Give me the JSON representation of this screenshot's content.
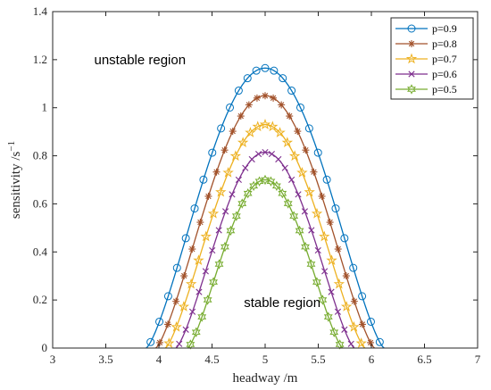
{
  "chart_data": {
    "type": "line",
    "xlabel": "headway /m",
    "ylabel": "sensitivity /s",
    "ylabel_sup": "−1",
    "xlim": [
      3,
      7
    ],
    "ylim": [
      0,
      1.4
    ],
    "xticks": [
      "3",
      "3.5",
      "4",
      "4.5",
      "5",
      "5.5",
      "6",
      "6.5",
      "7"
    ],
    "yticks": [
      "0",
      "0.2",
      "0.4",
      "0.6",
      "0.8",
      "1",
      "1.2",
      "1.4"
    ],
    "grid": false,
    "legend_position": "top-right",
    "annotations": [
      {
        "text": "unstable region",
        "x": 3.5,
        "y": 1.2
      },
      {
        "text": "stable region",
        "x": 4.8,
        "y": 0.19
      }
    ],
    "series": [
      {
        "name": "p=0.9",
        "color": "#0072BD",
        "marker": "circle",
        "peak": 1.165,
        "x0": 3.88,
        "x1": 6.12
      },
      {
        "name": "p=0.8",
        "color": "#A2522B",
        "marker": "asterisk",
        "peak": 1.05,
        "x0": 3.97,
        "x1": 6.03
      },
      {
        "name": "p=0.7",
        "color": "#EDB120",
        "marker": "star",
        "peak": 0.93,
        "x0": 4.06,
        "x1": 5.94
      },
      {
        "name": "p=0.6",
        "color": "#7E2F8E",
        "marker": "x",
        "peak": 0.815,
        "x0": 4.16,
        "x1": 5.84
      },
      {
        "name": "p=0.5",
        "color": "#77AC30",
        "marker": "hexagram",
        "peak": 0.7,
        "x0": 4.27,
        "x1": 5.73
      }
    ]
  }
}
